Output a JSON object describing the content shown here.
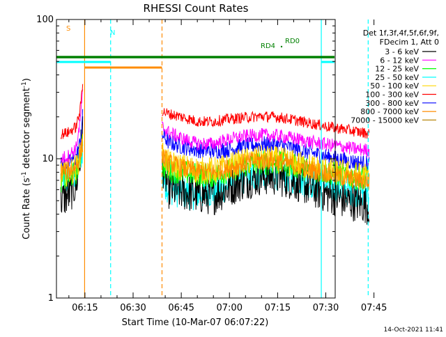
{
  "chart_data": {
    "type": "line",
    "title": "RHESSI Count Rates",
    "xlabel": "Start Time (10-Mar-07 06:07:22)",
    "ylabel_main": "Count Rate (s",
    "ylabel_sup1": "-1",
    "ylabel_mid": " detector segment",
    "ylabel_sup2": "-1",
    "ylabel_end": ")",
    "yscale": "log",
    "ylim": [
      1,
      100
    ],
    "xlim_minutes": [
      6.13,
      92.93
    ],
    "y_ticks": [
      {
        "label": "1",
        "value": 1
      },
      {
        "label": "10",
        "value": 10
      },
      {
        "label": "100",
        "value": 100
      }
    ],
    "x_ticks": [
      {
        "label": "06:15",
        "minutes": 15
      },
      {
        "label": "06:30",
        "minutes": 30
      },
      {
        "label": "06:45",
        "minutes": 45
      },
      {
        "label": "07:00",
        "minutes": 60
      },
      {
        "label": "07:15",
        "minutes": 75
      },
      {
        "label": "07:30",
        "minutes": 90
      },
      {
        "label": "07:45",
        "minutes": 105
      }
    ],
    "legend_header": [
      "Det 1f,3f,4f,5f,6f,9f,",
      "FDecim 1, Att 0"
    ],
    "series": [
      {
        "name": "3 - 6 keV",
        "color": "#000000",
        "pre": [
          [
            7.5,
            5.0
          ],
          [
            10,
            5.5
          ],
          [
            12.3,
            6.5
          ],
          [
            13.5,
            9.5
          ],
          [
            14.3,
            18
          ]
        ],
        "post": [
          [
            39,
            9
          ],
          [
            41,
            6
          ],
          [
            45,
            5.8
          ],
          [
            50,
            5.5
          ],
          [
            55,
            5.4
          ],
          [
            60,
            6.2
          ],
          [
            65,
            7.0
          ],
          [
            70,
            7.5
          ],
          [
            75,
            7.4
          ],
          [
            80,
            6.9
          ],
          [
            85,
            6.2
          ],
          [
            90,
            5.6
          ],
          [
            95,
            5.1
          ],
          [
            100,
            4.8
          ],
          [
            103.5,
            4.6
          ]
        ],
        "noise": 0.14
      },
      {
        "name": "6 - 12 keV",
        "color": "#ff00ff",
        "pre": [
          [
            7.5,
            10
          ],
          [
            10,
            10.5
          ],
          [
            12.3,
            12
          ],
          [
            13.5,
            18
          ],
          [
            14.3,
            30
          ]
        ],
        "post": [
          [
            39,
            17
          ],
          [
            41,
            15.5
          ],
          [
            45,
            14
          ],
          [
            50,
            12.8
          ],
          [
            55,
            12.8
          ],
          [
            60,
            13.8
          ],
          [
            65,
            14.5
          ],
          [
            70,
            14.8
          ],
          [
            75,
            14.6
          ],
          [
            80,
            14.0
          ],
          [
            85,
            13.2
          ],
          [
            90,
            12.7
          ],
          [
            95,
            12.2
          ],
          [
            100,
            11.7
          ],
          [
            103.5,
            11.5
          ]
        ],
        "noise": 0.05
      },
      {
        "name": "12 - 25 keV",
        "color": "#00ff00",
        "pre": [
          [
            7.5,
            7
          ],
          [
            10,
            7.3
          ],
          [
            12.3,
            8
          ],
          [
            13.5,
            10
          ],
          [
            14.3,
            14
          ]
        ],
        "post": [
          [
            39,
            9
          ],
          [
            41,
            8.3
          ],
          [
            45,
            8
          ],
          [
            50,
            7.7
          ],
          [
            55,
            7.6
          ],
          [
            60,
            8.2
          ],
          [
            65,
            9
          ],
          [
            70,
            9.4
          ],
          [
            75,
            9.3
          ],
          [
            80,
            8.9
          ],
          [
            85,
            8.4
          ],
          [
            90,
            8.0
          ],
          [
            95,
            7.6
          ],
          [
            100,
            7.3
          ],
          [
            103.5,
            7.1
          ]
        ],
        "noise": 0.09
      },
      {
        "name": "25 - 50 keV",
        "color": "#00ffff",
        "pre": [
          [
            7.5,
            6.8
          ],
          [
            10,
            7
          ],
          [
            12.3,
            7.8
          ],
          [
            13.5,
            9.5
          ],
          [
            14.3,
            12
          ]
        ],
        "post": [
          [
            39,
            7.2
          ],
          [
            41,
            6.2
          ],
          [
            45,
            5.7
          ],
          [
            50,
            5.6
          ],
          [
            55,
            5.8
          ],
          [
            60,
            6.6
          ],
          [
            65,
            7.4
          ],
          [
            70,
            7.9
          ],
          [
            75,
            7.8
          ],
          [
            80,
            7.3
          ],
          [
            85,
            6.8
          ],
          [
            90,
            6.4
          ],
          [
            95,
            6.1
          ],
          [
            100,
            5.9
          ],
          [
            103.5,
            5.8
          ]
        ],
        "noise": 0.12
      },
      {
        "name": "50 - 100 keV",
        "color": "#ffd700",
        "pre": [
          [
            7.5,
            7.8
          ],
          [
            10,
            8
          ],
          [
            12.3,
            8.6
          ],
          [
            13.5,
            10.5
          ],
          [
            14.3,
            13
          ]
        ],
        "post": [
          [
            39,
            11
          ],
          [
            41,
            9.2
          ],
          [
            45,
            8.7
          ],
          [
            50,
            8.3
          ],
          [
            55,
            8.2
          ],
          [
            60,
            8.8
          ],
          [
            65,
            9.6
          ],
          [
            70,
            10.0
          ],
          [
            75,
            9.8
          ],
          [
            80,
            9.3
          ],
          [
            85,
            8.7
          ],
          [
            90,
            8.3
          ],
          [
            95,
            7.9
          ],
          [
            100,
            7.6
          ],
          [
            103.5,
            7.4
          ]
        ],
        "noise": 0.1
      },
      {
        "name": "100 - 300 keV",
        "color": "#ff0000",
        "pre": [
          [
            7.5,
            15
          ],
          [
            10,
            15.5
          ],
          [
            12.3,
            17
          ],
          [
            13.5,
            22
          ],
          [
            14.3,
            34
          ]
        ],
        "post": [
          [
            39,
            22
          ],
          [
            41,
            21
          ],
          [
            45,
            20
          ],
          [
            50,
            18.5
          ],
          [
            55,
            18.5
          ],
          [
            60,
            19.3
          ],
          [
            65,
            19.8
          ],
          [
            70,
            20.2
          ],
          [
            75,
            19.9
          ],
          [
            80,
            19
          ],
          [
            85,
            18
          ],
          [
            90,
            17.1
          ],
          [
            95,
            16.4
          ],
          [
            100,
            15.6
          ],
          [
            103.5,
            15.2
          ]
        ],
        "noise": 0.04
      },
      {
        "name": "300 - 800 keV",
        "color": "#0000ff",
        "pre": [
          [
            7.5,
            9
          ],
          [
            10,
            9.3
          ],
          [
            12.3,
            10.2
          ],
          [
            13.5,
            13
          ],
          [
            14.3,
            20
          ]
        ],
        "post": [
          [
            39,
            15
          ],
          [
            41,
            13.2
          ],
          [
            45,
            12.3
          ],
          [
            50,
            11.6
          ],
          [
            55,
            11.4
          ],
          [
            60,
            11.7
          ],
          [
            65,
            12.3
          ],
          [
            70,
            12.7
          ],
          [
            75,
            12.6
          ],
          [
            80,
            11.9
          ],
          [
            85,
            11.1
          ],
          [
            90,
            10.4
          ],
          [
            95,
            9.8
          ],
          [
            100,
            9.4
          ],
          [
            103.5,
            9.2
          ]
        ],
        "noise": 0.06
      },
      {
        "name": "800 - 7000 keV",
        "color": "#ff8c00",
        "pre": [
          [
            7.5,
            8
          ],
          [
            10,
            8.2
          ],
          [
            12.3,
            8.9
          ],
          [
            13.5,
            10.5
          ],
          [
            14.3,
            13
          ]
        ],
        "post": [
          [
            39,
            10.5
          ],
          [
            41,
            9.4
          ],
          [
            45,
            8.6
          ],
          [
            50,
            8.1
          ],
          [
            55,
            8.0
          ],
          [
            60,
            8.6
          ],
          [
            65,
            9.4
          ],
          [
            70,
            9.8
          ],
          [
            75,
            9.6
          ],
          [
            80,
            9.0
          ],
          [
            85,
            8.4
          ],
          [
            90,
            7.9
          ],
          [
            95,
            7.4
          ],
          [
            100,
            7.0
          ],
          [
            103.5,
            6.8
          ]
        ],
        "noise": 0.07
      },
      {
        "name": "7000 - 15000 keV",
        "color": "#b8860b",
        "pre": [],
        "post": [],
        "noise": 0.05
      }
    ],
    "vlines": [
      {
        "minutes": 14.9,
        "color": "#ff8c00",
        "style": "solid"
      },
      {
        "minutes": 39.0,
        "color": "#ff8c00",
        "style": "dashed"
      },
      {
        "minutes": 23.0,
        "color": "#00ffff",
        "style": "dashed"
      },
      {
        "minutes": 88.6,
        "color": "#00ffff",
        "style": "solid"
      },
      {
        "minutes": 103.2,
        "color": "#00ffff",
        "style": "dashed"
      }
    ],
    "flag_bars": [
      {
        "label": "S",
        "color": "#ff8c00",
        "start": 14.9,
        "end": 39.0,
        "y": 84
      },
      {
        "label": "N",
        "color": "#00ffff",
        "start": 6.13,
        "end": 23.0,
        "y": 76
      },
      {
        "label": "RD0",
        "color": "#00ffff",
        "start": 88.6,
        "end": 104.6,
        "y": 76
      },
      {
        "label": "RD4",
        "color": "#008000",
        "start": 6.13,
        "end": 104.6,
        "y": 69
      }
    ],
    "timestamp": "14-Oct-2021 11:41"
  }
}
